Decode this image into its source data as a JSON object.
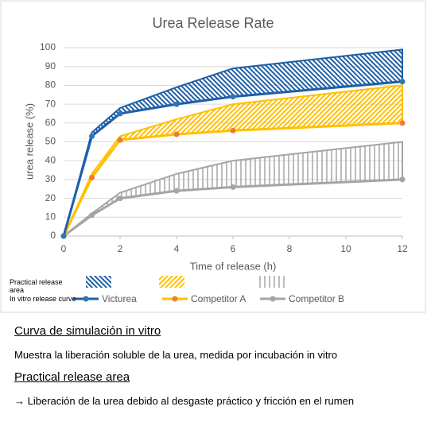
{
  "chart_data": {
    "type": "band-line",
    "title": "Urea Release Rate",
    "x_label": "Time of release (h)",
    "y_label": "urea release (%)",
    "x": [
      0,
      1,
      2,
      4,
      6,
      12
    ],
    "xlim": [
      0,
      12
    ],
    "xticks": [
      0,
      2,
      4,
      6,
      8,
      10,
      12
    ],
    "ylim": [
      0,
      100
    ],
    "yticks": [
      0,
      10,
      20,
      30,
      40,
      50,
      60,
      70,
      80,
      90,
      100
    ],
    "grid": true,
    "band_legend_label": "Practical release area",
    "line_legend_label": "In vitro release curve",
    "series": [
      {
        "name": "Victurea",
        "color": "#1f5fa6",
        "marker_color": "#2e75b6",
        "hatch": "backslash",
        "values": [
          0,
          53,
          65,
          70,
          74,
          82
        ],
        "upper": [
          0,
          55,
          68,
          79,
          89,
          99
        ]
      },
      {
        "name": "Competitor A",
        "color": "#ffc000",
        "marker_color": "#ed7d31",
        "hatch": "slash",
        "values": [
          0,
          31,
          51,
          54,
          56,
          60
        ],
        "upper": [
          0,
          33,
          53,
          62,
          70,
          80
        ]
      },
      {
        "name": "Competitor B",
        "color": "#a5a5a5",
        "marker_color": "#a5a5a5",
        "hatch": "vertical",
        "values": [
          0,
          11,
          20,
          24,
          26,
          30
        ],
        "upper": [
          0,
          12,
          23,
          33,
          40,
          50
        ]
      }
    ]
  },
  "document": {
    "heading_1": "Curva de simulación in vitro",
    "paragraph_1": "Muestra la liberación soluble de la urea, medida por incubación in vitro",
    "heading_2": "Practical release area",
    "paragraph_2": "→ Liberación de la urea debido al desgaste práctico y fricción en el rumen"
  }
}
